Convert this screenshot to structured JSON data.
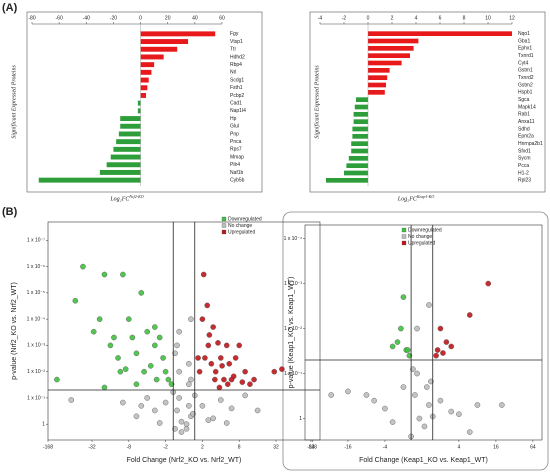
{
  "panels": [
    "(A)",
    "(B)"
  ],
  "chart_data": [
    {
      "type": "bar",
      "orientation": "horizontal",
      "xlabel": "Log₂FC",
      "xlabel_sup": "Nrf2-KO",
      "ylabel": "Significant Expressed Proteins",
      "categories": [
        "Fgy",
        "Vtsp1",
        "Ttr",
        "Hdhd2",
        "Rbp4",
        "Nrl",
        "Scdg1",
        "Fsth1",
        "Pcbp2",
        "Cad1",
        "Nap1l4",
        "Hp",
        "Glul",
        "Pnp",
        "Pnca",
        "Rps7",
        "Mmap",
        "Pilr4",
        "Naf1b",
        "Cyb5b"
      ],
      "values": [
        55,
        35,
        27,
        17,
        10,
        8,
        6,
        5,
        4,
        -2,
        -2,
        -15,
        -15,
        -16,
        -18,
        -20,
        -22,
        -25,
        -30,
        -75
      ],
      "pos_color": "#e8191b",
      "neg_color": "#2e9e3a",
      "xlim": [
        -80,
        60
      ],
      "xticks": [
        -80,
        -60,
        -40,
        -20,
        0,
        20,
        40,
        60
      ]
    },
    {
      "type": "bar",
      "orientation": "horizontal",
      "xlabel": "Log₂FC",
      "xlabel_sup": "Keap1-KO",
      "ylabel": "Significant Expressed Proteins",
      "categories": [
        "Nqo1",
        "Gba1",
        "Ephx1",
        "Txnrd1",
        "Cyt4",
        "Gstm1",
        "Txnrd2",
        "Gstm2",
        "Hspb1",
        "Sgca",
        "Mapk14",
        "Rab1",
        "Anxa11",
        "Sdhd",
        "Epm2a",
        "Hnrnpa2b1",
        "Sfxd1",
        "Sycm",
        "Pcca",
        "H1-2",
        "Rpl23"
      ],
      "values": [
        12,
        4.2,
        3.8,
        3.5,
        2.8,
        1.8,
        1.6,
        1.5,
        1.4,
        -1,
        -1.1,
        -1.2,
        -1.2,
        -1.3,
        -1.3,
        -1.4,
        -1.4,
        -1.6,
        -1.8,
        -2,
        -3.5
      ],
      "pos_color": "#e8191b",
      "neg_color": "#2e9e3a",
      "xlim": [
        -4,
        12
      ],
      "xticks": [
        -4,
        -2,
        0,
        2,
        4,
        6,
        8,
        10,
        12
      ]
    },
    {
      "type": "scatter",
      "xscale": "log2-signed",
      "yscale": "log",
      "xlabel": "Fold Change (Nrf2_KO vs. Nrf2_WT)",
      "ylabel": "p-value (Nrf2_KO vs. Nrf2_WT)",
      "xlim": [
        -168,
        168
      ],
      "xticks": [
        -168,
        -32,
        -8,
        -2,
        2,
        8,
        32,
        128
      ],
      "ylim": [
        4,
        2e-08
      ],
      "yticks": [
        {
          "value": 1e-07,
          "label": "1 x 10⁻⁷"
        },
        {
          "value": 1e-06,
          "label": "1 x 10⁻⁶"
        },
        {
          "value": 1e-05,
          "label": "1 x 10⁻⁵"
        },
        {
          "value": 0.0001,
          "label": "1 x 10⁻⁴"
        },
        {
          "value": 0.001,
          "label": "1 x 10⁻³"
        },
        {
          "value": 0.01,
          "label": "1 x 10⁻²"
        },
        {
          "value": 0.1,
          "label": "1 x 10⁻¹"
        },
        1
      ],
      "vlines": [
        -1.5,
        1.5
      ],
      "hline": 0.05,
      "series": [
        {
          "name": "Downregulated",
          "color": "#3fbf3f",
          "x": [
            -120,
            -60,
            -45,
            -30,
            -24,
            -20,
            -16,
            -14,
            -12,
            -10,
            -9,
            -8,
            -7,
            -6,
            -5,
            -4.5,
            -4,
            -3.5,
            -3,
            -2.8,
            -2.5,
            -2.2,
            -2,
            -1.8,
            -1.6,
            -6,
            -11,
            -20,
            -3
          ],
          "values": [
            0.02,
            2e-05,
            1e-06,
            0.0003,
            0.0001,
            2e-06,
            0.001,
            0.0005,
            0.003,
            2e-06,
            0.008,
            0.0001,
            0.0005,
            0.002,
            1e-05,
            0.01,
            0.0003,
            0.006,
            0.001,
            0.02,
            0.0005,
            0.003,
            0.01,
            0.02,
            0.03,
            0.03,
            0.01,
            0.04,
            0.0002
          ]
        },
        {
          "name": "No change",
          "color": "#bdbdbd",
          "x": [
            -1.2,
            -1.3,
            1.2,
            1.3,
            -1.1,
            1.1,
            -1.4,
            1.4,
            -2,
            2,
            -3,
            3,
            -4,
            4,
            -6,
            6,
            -10,
            10,
            -1.2,
            1.2,
            -1.3,
            1.3,
            -2.5,
            2.5,
            -1.5,
            1.5,
            -1.1,
            1.1,
            -5,
            5,
            -70,
            16,
            -1.2,
            1.2,
            -1.4,
            1.3
          ],
          "values": [
            0.1,
            0.3,
            0.2,
            0.5,
            0.8,
            1,
            1.5,
            0.4,
            0.15,
            0.2,
            0.3,
            0.6,
            0.1,
            0.12,
            0.5,
            0.25,
            0.15,
            0.08,
            0.01,
            0.005,
            0.001,
            0.02,
            0.9,
            0.7,
            0.06,
            0.08,
            2,
            1.5,
            0.2,
            0.9,
            0.12,
            0.3,
            0.0003,
            0.03,
            0.002,
            0.0001
          ]
        },
        {
          "name": "Upregulated",
          "color": "#c0141a",
          "x": [
            2,
            2.2,
            2.5,
            2.8,
            3,
            3.3,
            3.6,
            4,
            4.5,
            5,
            5.5,
            6,
            7,
            8,
            10,
            12,
            14,
            30,
            40,
            2.1,
            2.6,
            3.2,
            3.8,
            4.2,
            5.2,
            2.4,
            6.5,
            9,
            1.8,
            1.7
          ],
          "values": [
            0.0001,
            0.003,
            0.001,
            0.005,
            0.0002,
            0.01,
            0.0008,
            0.003,
            0.02,
            0.001,
            0.005,
            0.02,
            0.003,
            0.001,
            0.01,
            0.03,
            0.02,
            0.01,
            0.008,
            2e-06,
            0.0004,
            0.02,
            0.04,
            0.006,
            0.03,
            3e-05,
            0.015,
            0.025,
            0.01,
            0.003
          ]
        }
      ]
    },
    {
      "type": "scatter",
      "xscale": "log2-signed",
      "yscale": "log",
      "xlabel": "Fold Change (Keap1_KO vs. Keap1_WT)",
      "ylabel": "p-value (Keap1_KO vs. Keap1_WT)",
      "xlim": [
        -80,
        90
      ],
      "xticks": [
        -64,
        -16,
        -4,
        4,
        16,
        64
      ],
      "ylim": [
        3,
        5e-05
      ],
      "yticks": [
        {
          "value": 0.0001,
          "label": "1 x 10⁻⁴"
        },
        {
          "value": 0.001,
          "label": "1 x 10⁻³"
        },
        {
          "value": 0.01,
          "label": "1 x 10⁻²"
        },
        {
          "value": 0.1,
          "label": "1 x 10⁻¹"
        },
        1
      ],
      "vlines": [
        -1.5,
        1.5
      ],
      "hline": 0.05,
      "series": [
        {
          "name": "Downregulated",
          "color": "#3fbf3f",
          "x": [
            -2,
            -2.5,
            -1.8,
            -3,
            -1.6,
            -1.7,
            -2.2
          ],
          "values": [
            0.002,
            0.02,
            0.03,
            0.025,
            0.04,
            0.03,
            0.01
          ]
        },
        {
          "name": "No change",
          "color": "#bdbdbd",
          "x": [
            -1.2,
            1.2,
            -1.3,
            1.3,
            -2,
            2,
            -4,
            4,
            -8,
            8,
            -16,
            -1.1,
            1.1,
            -1.4,
            1.4,
            -3,
            3,
            -6,
            6,
            -1.2,
            1.3,
            -30,
            20,
            -1.5,
            1.5
          ],
          "values": [
            0.1,
            0.2,
            0.3,
            0.5,
            0.2,
            0.4,
            0.6,
            0.8,
            0.3,
            0.5,
            0.25,
            1,
            1.5,
            0.08,
            0.15,
            1.2,
            0.7,
            0.4,
            2,
            0.01,
            0.003,
            0.3,
            0.5,
            2.5,
            0.9
          ]
        },
        {
          "name": "Upregulated",
          "color": "#c0141a",
          "x": [
            12,
            6,
            2,
            2.5,
            1.8,
            3,
            1.7,
            2.2
          ],
          "values": [
            0.001,
            0.005,
            0.01,
            0.02,
            0.03,
            0.025,
            0.04,
            0.035
          ]
        }
      ]
    }
  ]
}
